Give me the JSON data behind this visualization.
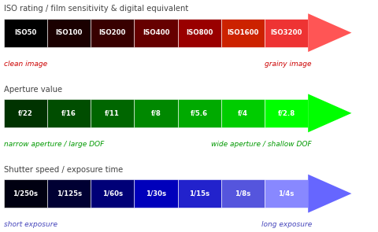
{
  "title1": "ISO rating / film sensitivity & digital equivalent",
  "title2": "Aperture value",
  "title3": "Shutter speed / exposure time",
  "iso_labels": [
    "ISO50",
    "ISO100",
    "ISO200",
    "ISO400",
    "ISO800",
    "ISO1600",
    "ISO3200"
  ],
  "iso_colors": [
    "#000000",
    "#1a0000",
    "#380000",
    "#660000",
    "#990000",
    "#cc2200",
    "#ee3333"
  ],
  "iso_label_left": "clean image",
  "iso_label_right": "grainy image",
  "iso_arrow_color": "#ff5555",
  "aperture_labels": [
    "f/22",
    "f/16",
    "f/11",
    "f/8",
    "f/5.6",
    "f/4",
    "f/2.8"
  ],
  "aperture_colors": [
    "#003300",
    "#004d00",
    "#006600",
    "#008800",
    "#00aa00",
    "#00cc00",
    "#00ff00"
  ],
  "aperture_label_left": "narrow aperture / large DOF",
  "aperture_label_right": "wide aperture / shallow DOF",
  "aperture_arrow_color": "#00ff00",
  "shutter_labels": [
    "1/250s",
    "1/125s",
    "1/60s",
    "1/30s",
    "1/15s",
    "1/8s",
    "1/4s"
  ],
  "shutter_colors": [
    "#000011",
    "#000033",
    "#000077",
    "#0000bb",
    "#2222cc",
    "#5555dd",
    "#8888ff"
  ],
  "shutter_label_left": "short exposure",
  "shutter_label_right": "long exposure",
  "shutter_arrow_color": "#6666ff",
  "bg_color": "#ffffff",
  "title_color": "#444444",
  "text_color_red": "#cc0000",
  "text_color_green": "#009900",
  "text_color_blue": "#4444bb"
}
